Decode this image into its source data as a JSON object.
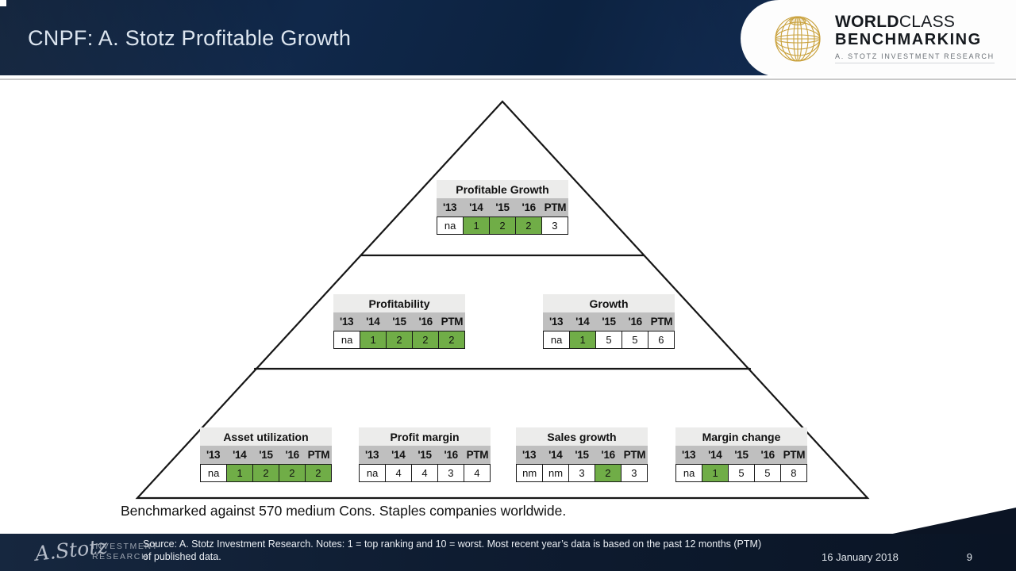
{
  "slide": {
    "title": "CNPF: A. Stotz Profitable Growth"
  },
  "brand": {
    "wordmark_bold": "WORLD",
    "wordmark_light": "CLASS",
    "wordmark_line2": "BENCHMARKING",
    "tagline": "A. STOTZ INVESTMENT RESEARCH",
    "globe_color": "#C9A13B"
  },
  "pyramid": {
    "note": "Benchmarked against 570 medium Cons. Staples companies worldwide.",
    "rank_colors": {
      "good_green": "#70AD47",
      "neutral_white": "#FFFFFF"
    },
    "tables": [
      {
        "title": "Profitable Growth",
        "years": [
          "'13",
          "'14",
          "'15",
          "'16",
          "PTM"
        ],
        "values": [
          "na",
          "1",
          "2",
          "2",
          "3"
        ],
        "green": [
          false,
          true,
          true,
          true,
          false
        ]
      },
      {
        "title": "Profitability",
        "years": [
          "'13",
          "'14",
          "'15",
          "'16",
          "PTM"
        ],
        "values": [
          "na",
          "1",
          "2",
          "2",
          "2"
        ],
        "green": [
          false,
          true,
          true,
          true,
          true
        ]
      },
      {
        "title": "Growth",
        "years": [
          "'13",
          "'14",
          "'15",
          "'16",
          "PTM"
        ],
        "values": [
          "na",
          "1",
          "5",
          "5",
          "6"
        ],
        "green": [
          false,
          true,
          false,
          false,
          false
        ]
      },
      {
        "title": "Asset utilization",
        "years": [
          "'13",
          "'14",
          "'15",
          "'16",
          "PTM"
        ],
        "values": [
          "na",
          "1",
          "2",
          "2",
          "2"
        ],
        "green": [
          false,
          true,
          true,
          true,
          true
        ]
      },
      {
        "title": "Profit margin",
        "years": [
          "'13",
          "'14",
          "'15",
          "'16",
          "PTM"
        ],
        "values": [
          "na",
          "4",
          "4",
          "3",
          "4"
        ],
        "green": [
          false,
          false,
          false,
          false,
          false
        ]
      },
      {
        "title": "Sales growth",
        "years": [
          "'13",
          "'14",
          "'15",
          "'16",
          "PTM"
        ],
        "values": [
          "nm",
          "nm",
          "3",
          "2",
          "3"
        ],
        "green": [
          false,
          false,
          false,
          true,
          false
        ]
      },
      {
        "title": "Margin change",
        "years": [
          "'13",
          "'14",
          "'15",
          "'16",
          "PTM"
        ],
        "values": [
          "na",
          "1",
          "5",
          "5",
          "8"
        ],
        "green": [
          false,
          true,
          false,
          false,
          false
        ]
      }
    ]
  },
  "footer": {
    "logo_script": "A.Stotz",
    "logo_caps_line1": "INVESTMENT",
    "logo_caps_line2": "RESEARCH",
    "source_text": "Source: A. Stotz Investment Research. Notes: 1 = top ranking and 10 = worst. Most recent year’s data is based on the past 12 months (PTM) of published data.",
    "date": "16 January 2018",
    "page_number": "9"
  }
}
